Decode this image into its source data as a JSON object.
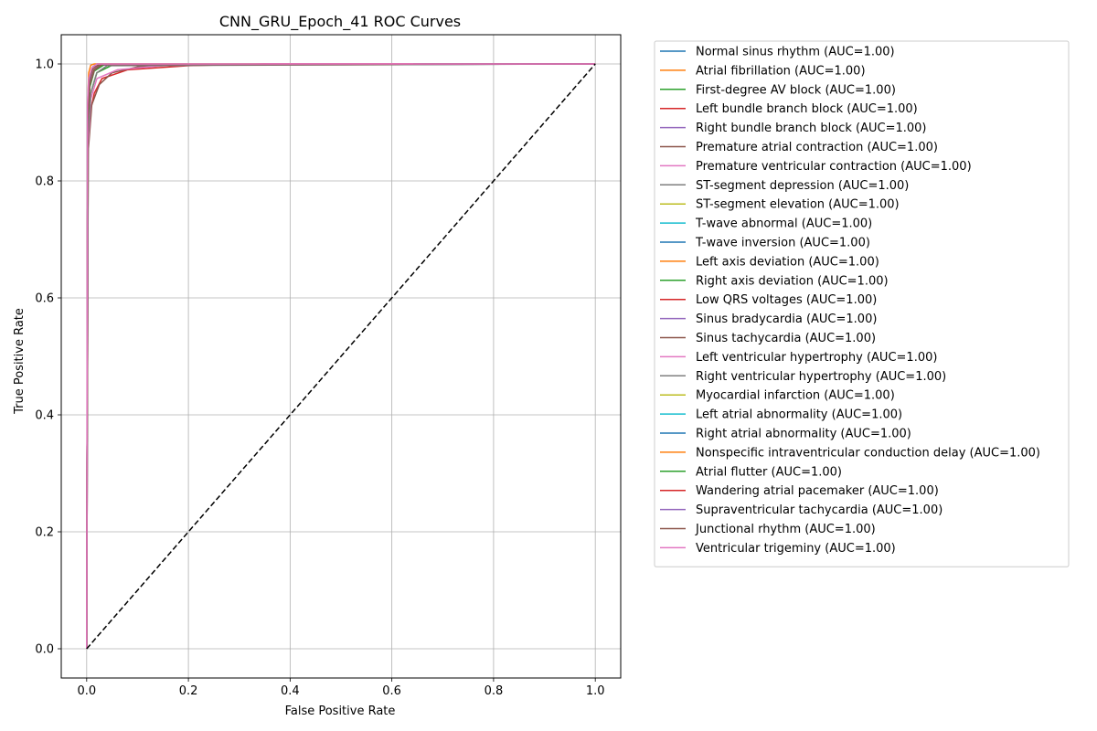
{
  "chart_data": {
    "type": "line",
    "title": "CNN_GRU_Epoch_41 ROC Curves",
    "xlabel": "False Positive Rate",
    "ylabel": "True Positive Rate",
    "xlim": [
      -0.05,
      1.05
    ],
    "ylim": [
      -0.05,
      1.05
    ],
    "xticks": [
      0.0,
      0.2,
      0.4,
      0.6,
      0.8,
      1.0
    ],
    "yticks": [
      0.0,
      0.2,
      0.4,
      0.6,
      0.8,
      1.0
    ],
    "xtick_labels": [
      "0.0",
      "0.2",
      "0.4",
      "0.6",
      "0.8",
      "1.0"
    ],
    "ytick_labels": [
      "0.0",
      "0.2",
      "0.4",
      "0.6",
      "0.8",
      "1.0"
    ],
    "grid": true,
    "legend_position": "outside right, top",
    "diagonal": {
      "x": [
        0,
        1
      ],
      "y": [
        0,
        1
      ],
      "color": "#000000",
      "style": "dashed"
    },
    "series": [
      {
        "name": "Normal sinus rhythm (AUC=1.00)",
        "color": "#1f77b4",
        "x": [
          0,
          0.002,
          0.006,
          0.012,
          0.02,
          1.0
        ],
        "y": [
          0,
          0.9,
          0.975,
          0.995,
          1.0,
          1.0
        ]
      },
      {
        "name": "Atrial fibrillation (AUC=1.00)",
        "color": "#ff7f0e",
        "x": [
          0,
          0.002,
          0.004,
          0.008,
          0.015,
          1.0
        ],
        "y": [
          0,
          0.93,
          0.985,
          0.998,
          1.0,
          1.0
        ]
      },
      {
        "name": "First-degree AV block (AUC=1.00)",
        "color": "#2ca02c",
        "x": [
          0,
          0.003,
          0.008,
          0.02,
          0.05,
          1.0
        ],
        "y": [
          0,
          0.88,
          0.95,
          0.985,
          0.998,
          1.0
        ]
      },
      {
        "name": "Left bundle branch block (AUC=1.00)",
        "color": "#d62728",
        "x": [
          0,
          0.002,
          0.005,
          0.015,
          0.03,
          0.08,
          0.2,
          0.35,
          1.0
        ],
        "y": [
          0,
          0.82,
          0.91,
          0.95,
          0.975,
          0.99,
          0.997,
          1.0,
          1.0
        ]
      },
      {
        "name": "Right bundle branch block (AUC=1.00)",
        "color": "#9467bd",
        "x": [
          0,
          0.002,
          0.005,
          0.012,
          0.025,
          1.0
        ],
        "y": [
          0,
          0.9,
          0.96,
          0.985,
          0.998,
          1.0
        ]
      },
      {
        "name": "Premature atrial contraction (AUC=1.00)",
        "color": "#8c564b",
        "x": [
          0,
          0.003,
          0.01,
          0.025,
          0.05,
          0.1,
          0.2,
          1.0
        ],
        "y": [
          0,
          0.85,
          0.93,
          0.965,
          0.985,
          0.995,
          0.999,
          1.0
        ]
      },
      {
        "name": "Premature ventricular contraction (AUC=1.00)",
        "color": "#e377c2",
        "x": [
          0,
          0.003,
          0.008,
          0.02,
          0.06,
          0.15,
          0.36,
          1.0
        ],
        "y": [
          0,
          0.86,
          0.94,
          0.975,
          0.99,
          0.997,
          1.0,
          1.0
        ]
      },
      {
        "name": "ST-segment depression (AUC=1.00)",
        "color": "#7f7f7f",
        "x": [
          0,
          0.003,
          0.008,
          0.02,
          0.04,
          1.0
        ],
        "y": [
          0,
          0.88,
          0.95,
          0.985,
          0.997,
          1.0
        ]
      },
      {
        "name": "ST-segment elevation (AUC=1.00)",
        "color": "#bcbd22",
        "x": [
          0,
          0.002,
          0.006,
          0.015,
          0.03,
          1.0
        ],
        "y": [
          0,
          0.9,
          0.97,
          0.99,
          0.999,
          1.0
        ]
      },
      {
        "name": "T-wave abnormal (AUC=1.00)",
        "color": "#17becf",
        "x": [
          0,
          0.002,
          0.006,
          0.014,
          0.03,
          1.0
        ],
        "y": [
          0,
          0.9,
          0.965,
          0.99,
          0.999,
          1.0
        ]
      },
      {
        "name": "T-wave inversion (AUC=1.00)",
        "color": "#1f77b4",
        "x": [
          0,
          0.002,
          0.005,
          0.012,
          0.025,
          1.0
        ],
        "y": [
          0,
          0.91,
          0.97,
          0.992,
          0.999,
          1.0
        ]
      },
      {
        "name": "Left axis deviation (AUC=1.00)",
        "color": "#ff7f0e",
        "x": [
          0,
          0.002,
          0.005,
          0.012,
          0.025,
          1.0
        ],
        "y": [
          0,
          0.9,
          0.97,
          0.99,
          0.999,
          1.0
        ]
      },
      {
        "name": "Right axis deviation (AUC=1.00)",
        "color": "#2ca02c",
        "x": [
          0,
          0.002,
          0.006,
          0.015,
          0.035,
          1.0
        ],
        "y": [
          0,
          0.89,
          0.96,
          0.988,
          0.999,
          1.0
        ]
      },
      {
        "name": "Low QRS voltages (AUC=1.00)",
        "color": "#d62728",
        "x": [
          0,
          0.002,
          0.006,
          0.015,
          0.03,
          1.0
        ],
        "y": [
          0,
          0.9,
          0.965,
          0.99,
          0.999,
          1.0
        ]
      },
      {
        "name": "Sinus bradycardia (AUC=1.00)",
        "color": "#9467bd",
        "x": [
          0,
          0.002,
          0.005,
          0.012,
          0.025,
          1.0
        ],
        "y": [
          0,
          0.9,
          0.97,
          0.992,
          0.999,
          1.0
        ]
      },
      {
        "name": "Sinus tachycardia (AUC=1.00)",
        "color": "#8c564b",
        "x": [
          0,
          0.002,
          0.005,
          0.012,
          0.025,
          1.0
        ],
        "y": [
          0,
          0.92,
          0.975,
          0.993,
          0.999,
          1.0
        ]
      },
      {
        "name": "Left ventricular hypertrophy (AUC=1.00)",
        "color": "#e377c2",
        "x": [
          0,
          0.002,
          0.006,
          0.015,
          0.03,
          1.0
        ],
        "y": [
          0,
          0.9,
          0.965,
          0.99,
          0.999,
          1.0
        ]
      },
      {
        "name": "Right ventricular hypertrophy (AUC=1.00)",
        "color": "#7f7f7f",
        "x": [
          0,
          0.002,
          0.006,
          0.015,
          0.03,
          1.0
        ],
        "y": [
          0,
          0.9,
          0.965,
          0.99,
          0.999,
          1.0
        ]
      },
      {
        "name": "Myocardial infarction (AUC=1.00)",
        "color": "#bcbd22",
        "x": [
          0,
          0.002,
          0.006,
          0.015,
          0.03,
          1.0
        ],
        "y": [
          0,
          0.9,
          0.965,
          0.99,
          0.999,
          1.0
        ]
      },
      {
        "name": "Left atrial abnormality (AUC=1.00)",
        "color": "#17becf",
        "x": [
          0,
          0.002,
          0.006,
          0.015,
          0.03,
          1.0
        ],
        "y": [
          0,
          0.9,
          0.965,
          0.99,
          0.999,
          1.0
        ]
      },
      {
        "name": "Right atrial abnormality (AUC=1.00)",
        "color": "#1f77b4",
        "x": [
          0,
          0.002,
          0.006,
          0.015,
          0.03,
          1.0
        ],
        "y": [
          0,
          0.9,
          0.965,
          0.99,
          0.999,
          1.0
        ]
      },
      {
        "name": "Nonspecific intraventricular conduction delay (AUC=1.00)",
        "color": "#ff7f0e",
        "x": [
          0,
          0.002,
          0.006,
          0.015,
          0.03,
          1.0
        ],
        "y": [
          0,
          0.9,
          0.965,
          0.99,
          0.999,
          1.0
        ]
      },
      {
        "name": "Atrial flutter (AUC=1.00)",
        "color": "#2ca02c",
        "x": [
          0,
          0.002,
          0.006,
          0.015,
          0.03,
          1.0
        ],
        "y": [
          0,
          0.9,
          0.965,
          0.99,
          0.999,
          1.0
        ]
      },
      {
        "name": "Wandering atrial pacemaker (AUC=1.00)",
        "color": "#d62728",
        "x": [
          0,
          0.002,
          0.006,
          0.015,
          0.03,
          1.0
        ],
        "y": [
          0,
          0.9,
          0.965,
          0.99,
          0.999,
          1.0
        ]
      },
      {
        "name": "Supraventricular tachycardia (AUC=1.00)",
        "color": "#9467bd",
        "x": [
          0,
          0.002,
          0.006,
          0.015,
          0.03,
          1.0
        ],
        "y": [
          0,
          0.9,
          0.965,
          0.99,
          0.999,
          1.0
        ]
      },
      {
        "name": "Junctional rhythm (AUC=1.00)",
        "color": "#8c564b",
        "x": [
          0,
          0.002,
          0.006,
          0.015,
          0.03,
          1.0
        ],
        "y": [
          0,
          0.9,
          0.965,
          0.99,
          0.999,
          1.0
        ]
      },
      {
        "name": "Ventricular trigeminy (AUC=1.00)",
        "color": "#e377c2",
        "x": [
          0,
          0.0015,
          0.004,
          0.01,
          0.02,
          1.0
        ],
        "y": [
          0,
          0.93,
          0.975,
          0.993,
          1.0,
          1.0
        ]
      }
    ]
  }
}
